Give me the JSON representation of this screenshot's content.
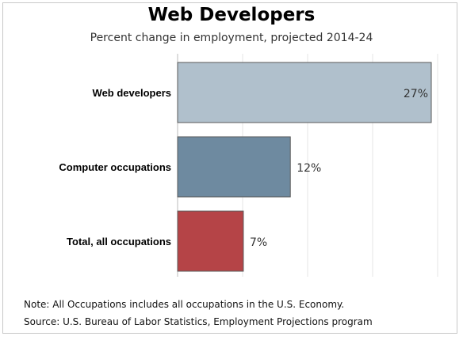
{
  "chart_data": {
    "type": "bar",
    "orientation": "horizontal",
    "title": "Web Developers",
    "subtitle": "Percent change in employment, projected 2014-24",
    "categories": [
      "Web developers",
      "Computer occupations",
      "Total, all occupations"
    ],
    "values": [
      27,
      12,
      7
    ],
    "value_labels": [
      "27%",
      "12%",
      "7%"
    ],
    "colors": [
      "#b0c0cc",
      "#6e8aa0",
      "#b54447"
    ],
    "xlim": [
      0,
      27
    ],
    "grid": true
  },
  "note": "Note: All Occupations includes all occupations in the U.S. Economy.",
  "source": "Source: U.S. Bureau of Labor Statistics, Employment Projections program"
}
